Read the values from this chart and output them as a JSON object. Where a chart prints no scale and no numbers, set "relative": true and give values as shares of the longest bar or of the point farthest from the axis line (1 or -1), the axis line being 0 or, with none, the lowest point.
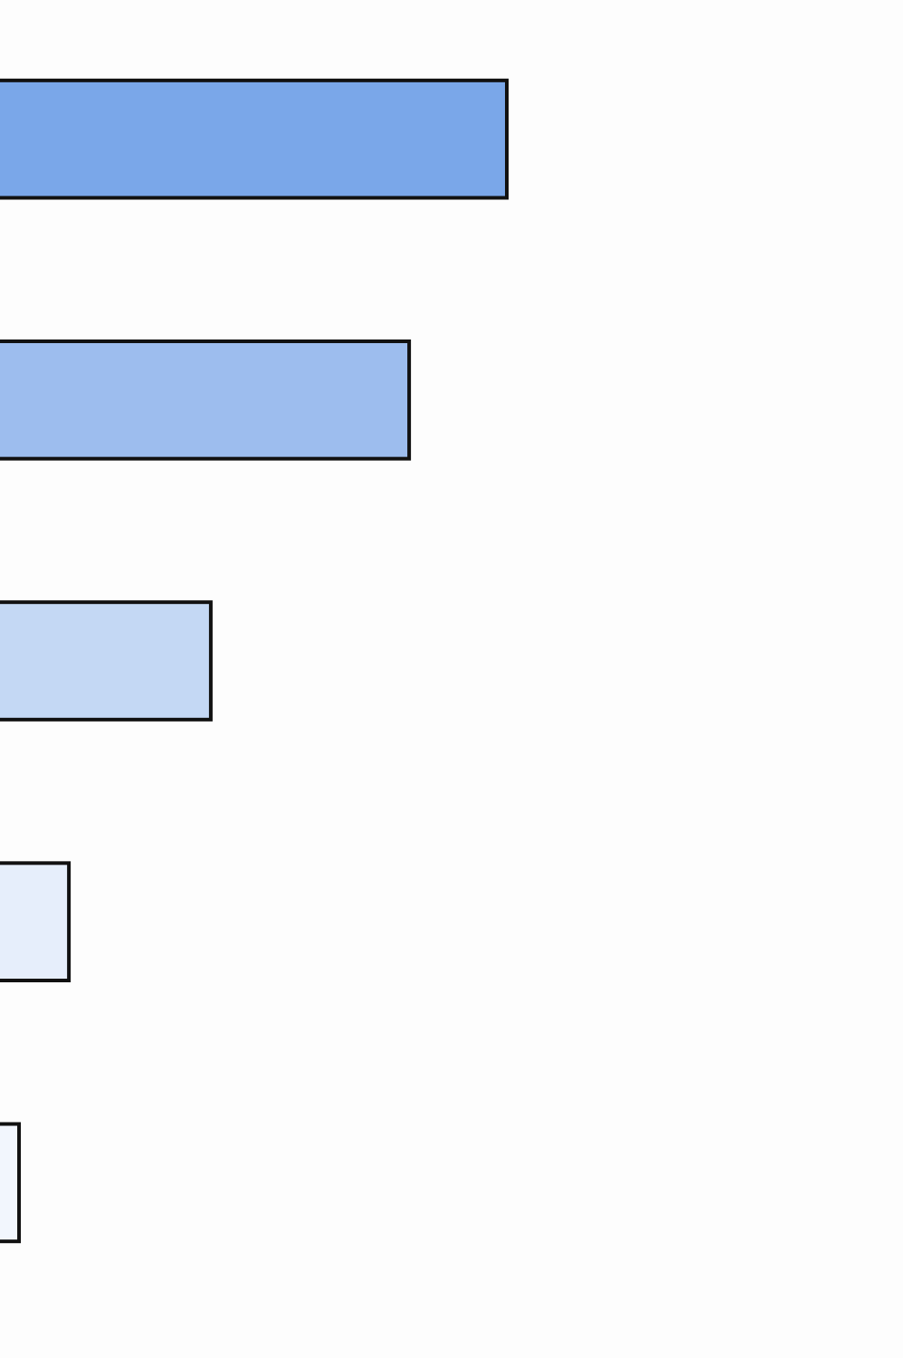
{
  "chart_data": {
    "type": "bar",
    "orientation": "horizontal",
    "relative": true,
    "categories": [
      null,
      null,
      null,
      null,
      null
    ],
    "values": [
      1,
      0.808,
      0.418,
      0.139,
      0.041
    ],
    "colors": [
      "#7aa7e9",
      "#9dbdee",
      "#c4d8f4",
      "#e6eefb",
      "#f2f6fd"
    ]
  }
}
